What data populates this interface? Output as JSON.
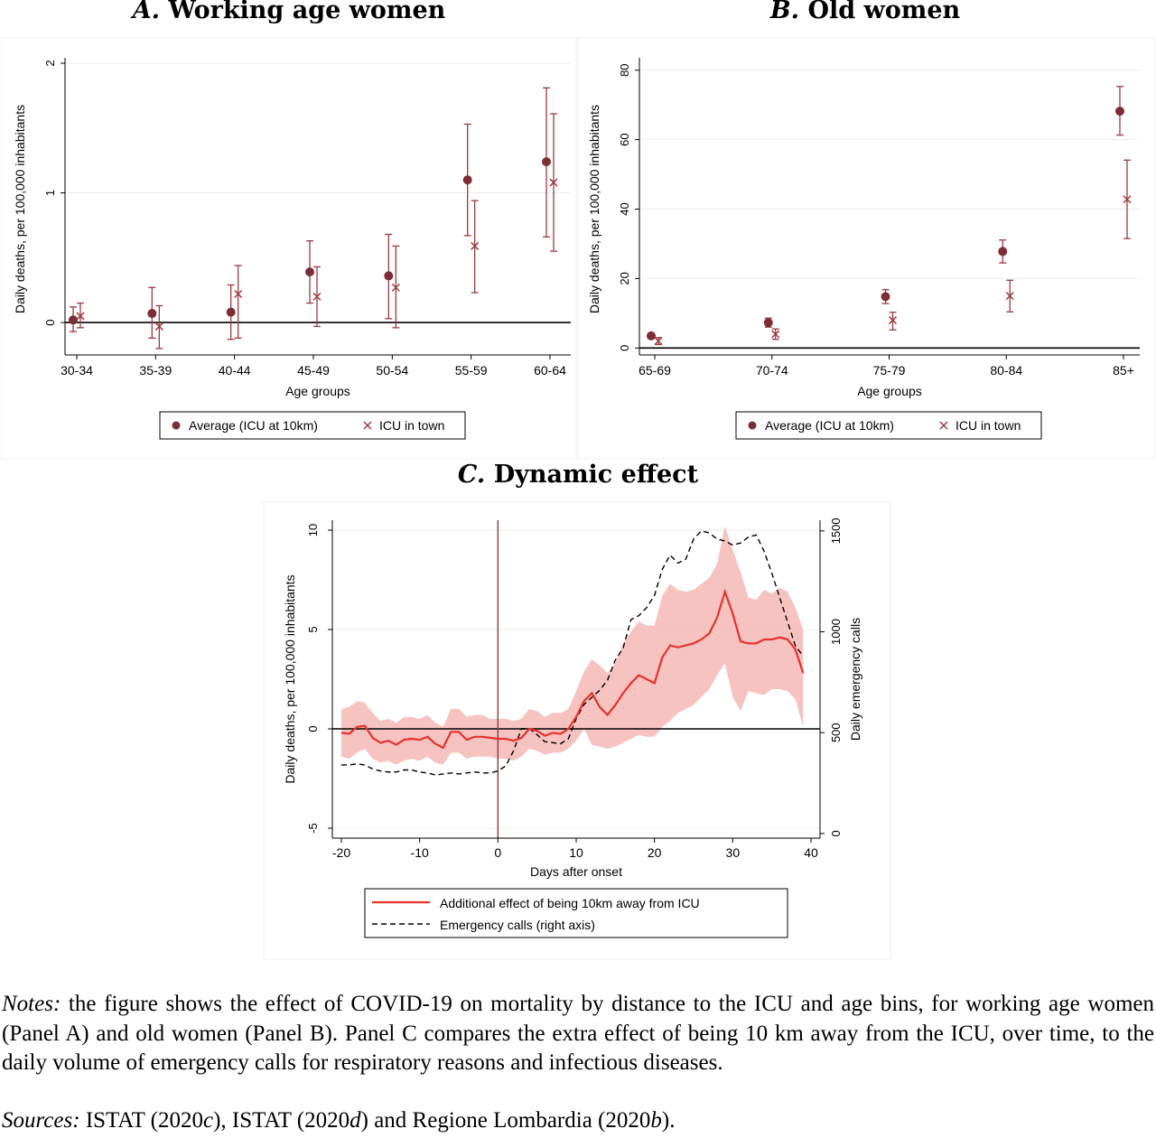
{
  "panels": {
    "a": {
      "letter": "A.",
      "title": "Working age women"
    },
    "b": {
      "letter": "B.",
      "title": "Old women"
    },
    "c": {
      "letter": "C.",
      "title": "Dynamic effect"
    }
  },
  "chart_data": [
    {
      "id": "A",
      "type": "scatter",
      "title": "A. Working age women",
      "xlabel": "Age groups",
      "ylabel": "Daily deaths, per 100,000 inhabitants",
      "categories": [
        "30-34",
        "35-39",
        "40-44",
        "45-49",
        "50-54",
        "55-59",
        "60-64"
      ],
      "ylim": [
        -0.25,
        2.0
      ],
      "yticks": [
        "0",
        "1",
        "2"
      ],
      "series": [
        {
          "name": "Average (ICU at 10km)",
          "marker": "circle",
          "color": "#7b2e34",
          "values": [
            0.02,
            0.07,
            0.08,
            0.39,
            0.36,
            1.1,
            1.24
          ],
          "ci_low": [
            -0.07,
            -0.12,
            -0.13,
            0.15,
            0.03,
            0.67,
            0.66
          ],
          "ci_high": [
            0.12,
            0.27,
            0.29,
            0.63,
            0.68,
            1.53,
            1.81
          ]
        },
        {
          "name": "ICU in town",
          "marker": "x",
          "color": "#9b3b3e",
          "values": [
            0.05,
            -0.03,
            0.22,
            0.2,
            0.27,
            0.59,
            1.08
          ],
          "ci_low": [
            -0.04,
            -0.2,
            -0.12,
            -0.03,
            -0.04,
            0.23,
            0.55
          ],
          "ci_high": [
            0.15,
            0.13,
            0.44,
            0.43,
            0.59,
            0.94,
            1.61
          ]
        }
      ],
      "grid": true,
      "legend": "bottom"
    },
    {
      "id": "B",
      "type": "scatter",
      "title": "B. Old women",
      "xlabel": "Age groups",
      "ylabel": "Daily deaths, per 100,000 inhabitants",
      "categories": [
        "65-69",
        "70-74",
        "75-79",
        "80-84",
        "85+"
      ],
      "ylim": [
        -2,
        82
      ],
      "yticks": [
        "0",
        "20",
        "40",
        "60",
        "80"
      ],
      "series": [
        {
          "name": "Average (ICU at 10km)",
          "marker": "circle",
          "color": "#7b2e34",
          "values": [
            3.5,
            7.3,
            14.8,
            27.8,
            68.2
          ],
          "ci_low": [
            2.8,
            6.0,
            12.8,
            24.5,
            61.3
          ],
          "ci_high": [
            4.2,
            8.6,
            16.8,
            31.1,
            75.3
          ]
        },
        {
          "name": "ICU in town",
          "marker": "x",
          "color": "#9b3b3e",
          "values": [
            2.0,
            4.0,
            8.0,
            15.0,
            42.8
          ],
          "ci_low": [
            1.0,
            2.5,
            5.2,
            10.4,
            31.5
          ],
          "ci_high": [
            3.0,
            5.5,
            10.3,
            19.5,
            54.1
          ]
        }
      ],
      "grid": true,
      "legend": "bottom"
    },
    {
      "id": "C",
      "type": "line",
      "title": "C. Dynamic effect",
      "xlabel": "Days after onset",
      "ylabel": "Daily deaths, per 100,000 inhabitants",
      "ylabel_right": "Daily emergency calls",
      "xlim": [
        -20,
        40
      ],
      "xticks": [
        "-20",
        "-10",
        "0",
        "10",
        "20",
        "30",
        "40"
      ],
      "ylim": [
        -5.5,
        10.5
      ],
      "yticks": [
        "-5",
        "0",
        "5",
        "10"
      ],
      "ylim_right": [
        -23,
        1553
      ],
      "yticks_right": [
        "0",
        "500",
        "1000",
        "1500"
      ],
      "x": [
        -20,
        -19,
        -18,
        -17,
        -16,
        -15,
        -14,
        -13,
        -12,
        -11,
        -10,
        -9,
        -8,
        -7,
        -6,
        -5,
        -4,
        -3,
        -2,
        -1,
        0,
        1,
        2,
        3,
        4,
        5,
        6,
        7,
        8,
        9,
        10,
        11,
        12,
        13,
        14,
        15,
        16,
        17,
        18,
        19,
        20,
        21,
        22,
        23,
        24,
        25,
        26,
        27,
        28,
        29,
        30,
        31,
        32,
        33,
        34,
        35,
        36,
        37,
        38,
        39
      ],
      "series": [
        {
          "name": "Additional effect of being 10km away from ICU",
          "style": "solid",
          "color": "#e8322b",
          "axis": "left",
          "values": [
            -0.2,
            -0.25,
            0.1,
            0.15,
            -0.45,
            -0.7,
            -0.6,
            -0.8,
            -0.55,
            -0.5,
            -0.55,
            -0.4,
            -0.75,
            -0.95,
            -0.15,
            -0.15,
            -0.55,
            -0.4,
            -0.4,
            -0.45,
            -0.5,
            -0.5,
            -0.6,
            -0.45,
            0.0,
            -0.1,
            -0.35,
            -0.2,
            -0.25,
            0.0,
            0.6,
            1.4,
            1.8,
            1.1,
            0.7,
            1.2,
            1.8,
            2.3,
            2.7,
            2.5,
            2.3,
            3.6,
            4.2,
            4.1,
            4.2,
            4.3,
            4.5,
            4.8,
            5.6,
            6.9,
            5.8,
            4.4,
            4.3,
            4.3,
            4.5,
            4.5,
            4.6,
            4.5,
            4.0,
            2.8
          ],
          "ci_low": [
            -1.4,
            -1.5,
            -1.2,
            -1.0,
            -1.5,
            -1.7,
            -1.6,
            -1.8,
            -1.6,
            -1.5,
            -1.6,
            -1.4,
            -1.7,
            -1.8,
            -1.2,
            -1.2,
            -1.5,
            -1.4,
            -1.4,
            -1.4,
            -1.5,
            -1.5,
            -1.6,
            -1.4,
            -1.0,
            -1.1,
            -1.3,
            -1.2,
            -1.2,
            -1.0,
            -0.6,
            0.0,
            -0.8,
            -0.9,
            -1.0,
            -0.9,
            -0.7,
            -0.5,
            -0.3,
            -0.4,
            -0.4,
            0.1,
            0.4,
            0.8,
            1.0,
            1.2,
            1.6,
            2.0,
            2.7,
            3.3,
            1.6,
            0.9,
            1.9,
            1.8,
            1.7,
            2.0,
            2.0,
            1.9,
            1.5,
            0.1
          ],
          "ci_high": [
            1.0,
            1.1,
            1.4,
            1.3,
            0.8,
            0.4,
            0.5,
            0.3,
            0.6,
            0.6,
            0.5,
            0.7,
            0.3,
            0.1,
            1.0,
            1.0,
            0.6,
            0.7,
            0.7,
            0.5,
            0.5,
            0.5,
            0.4,
            0.5,
            1.0,
            0.9,
            0.6,
            0.8,
            0.8,
            1.0,
            1.9,
            2.9,
            3.5,
            3.2,
            2.8,
            3.3,
            4.3,
            4.9,
            5.4,
            5.2,
            5.2,
            6.7,
            7.3,
            7.0,
            6.9,
            7.0,
            7.3,
            7.6,
            8.3,
            10.2,
            9.0,
            7.9,
            6.6,
            6.5,
            7.0,
            6.8,
            7.1,
            6.9,
            6.1,
            5.0
          ]
        },
        {
          "name": "Emergency calls (right axis)",
          "style": "dashed",
          "color": "#000000",
          "axis": "right",
          "values": [
            340,
            340,
            345,
            340,
            320,
            310,
            305,
            305,
            315,
            315,
            305,
            300,
            290,
            295,
            300,
            295,
            300,
            305,
            300,
            300,
            310,
            335,
            410,
            520,
            520,
            490,
            455,
            450,
            445,
            470,
            570,
            640,
            675,
            710,
            760,
            860,
            920,
            1060,
            1080,
            1120,
            1180,
            1310,
            1380,
            1340,
            1360,
            1460,
            1500,
            1490,
            1460,
            1450,
            1430,
            1440,
            1470,
            1480,
            1400,
            1290,
            1170,
            1050,
            930,
            880
          ]
        }
      ],
      "vline_x": 0,
      "hline_y": 0,
      "grid": true,
      "legend": "bottom"
    }
  ],
  "notes": {
    "label": "Notes:",
    "text": " the figure shows the effect of COVID-19 on mortality by distance to the ICU and age bins, for working age women (Panel A) and old women (Panel B). Panel C compares the extra effect of being 10 km away from the ICU, over time, to the daily volume of emergency calls for respiratory reasons and infectious diseases."
  },
  "sources": {
    "label": "Sources:",
    "items": [
      "ISTAT (2020",
      "c",
      "), ISTAT (2020",
      "d",
      ") and Regione Lombardia (2020",
      "b",
      ")."
    ]
  }
}
